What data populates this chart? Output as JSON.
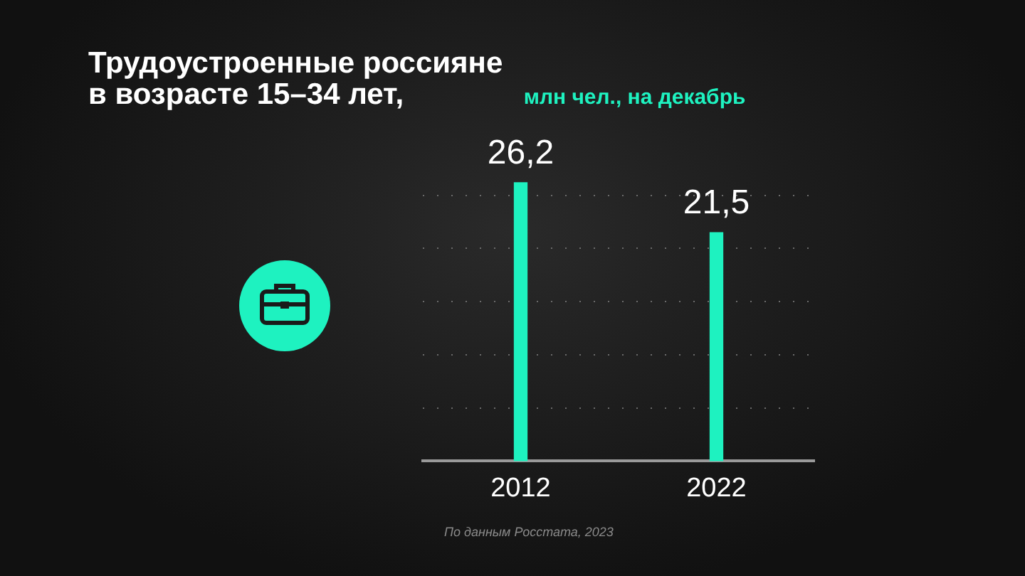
{
  "chart_data": {
    "type": "bar",
    "title": "Трудоустроенные россияне в возрасте 15–34 лет,",
    "subtitle": "млн чел., на декабрь",
    "categories": [
      "2012",
      "2022"
    ],
    "values": [
      26.2,
      21.5
    ],
    "value_labels": [
      "26,2",
      "21,5"
    ],
    "color": "#1ef2c0",
    "yticks": [
      {
        "value": 5,
        "label": null
      },
      {
        "value": 10,
        "label": null
      },
      {
        "value": 15,
        "label": null
      },
      {
        "value": 20,
        "label": null
      },
      {
        "value": 25,
        "label": null
      }
    ],
    "grid": "y",
    "tick_labels": "x",
    "annotations": [
      "По данным Росстата, 2023"
    ]
  }
}
